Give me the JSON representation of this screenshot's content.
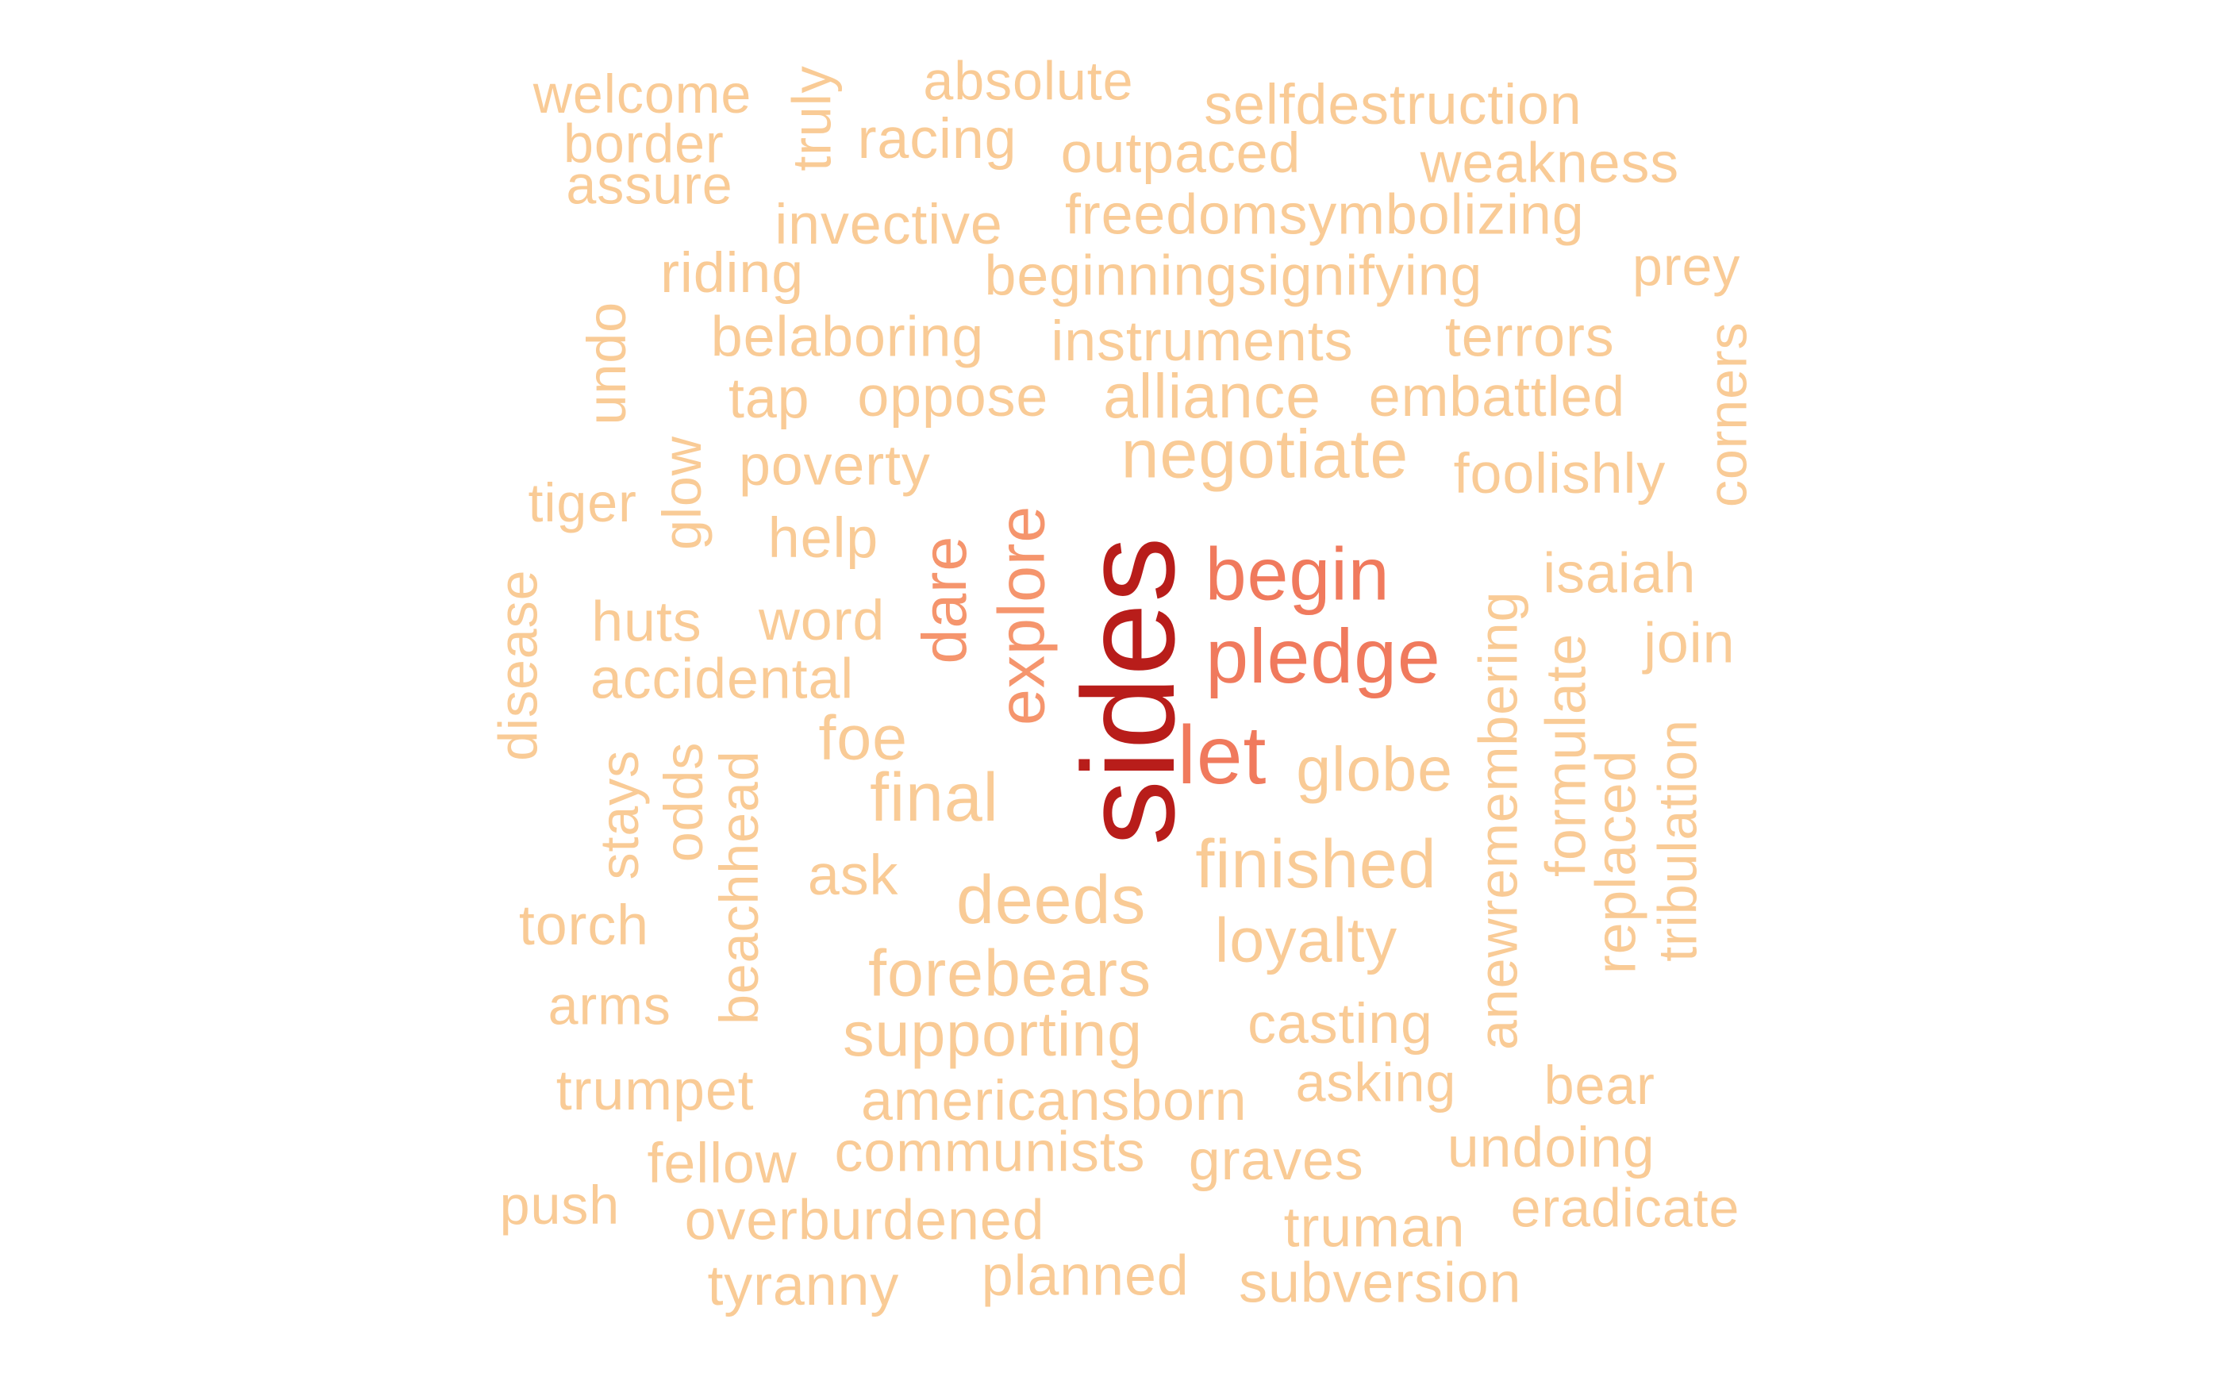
{
  "colors": {
    "background": "#ffffff",
    "level_0": "#f9cb96",
    "level_1": "#f5956d",
    "level_2": "#f07a5d",
    "level_3": "#b81d1a"
  },
  "words": [
    {
      "text": "sides",
      "level": 3
    },
    {
      "text": "begin",
      "level": 2
    },
    {
      "text": "pledge",
      "level": 2
    },
    {
      "text": "let",
      "level": 2
    },
    {
      "text": "explore",
      "level": 1
    },
    {
      "text": "dare",
      "level": 1
    },
    {
      "text": "welcome",
      "level": 0
    },
    {
      "text": "border",
      "level": 0
    },
    {
      "text": "assure",
      "level": 0
    },
    {
      "text": "truly",
      "level": 0
    },
    {
      "text": "absolute",
      "level": 0
    },
    {
      "text": "racing",
      "level": 0
    },
    {
      "text": "selfdestruction",
      "level": 0
    },
    {
      "text": "outpaced",
      "level": 0
    },
    {
      "text": "weakness",
      "level": 0
    },
    {
      "text": "invective",
      "level": 0
    },
    {
      "text": "freedomsymbolizing",
      "level": 0
    },
    {
      "text": "riding",
      "level": 0
    },
    {
      "text": "beginningsignifying",
      "level": 0
    },
    {
      "text": "prey",
      "level": 0
    },
    {
      "text": "undo",
      "level": 0
    },
    {
      "text": "belaboring",
      "level": 0
    },
    {
      "text": "instruments",
      "level": 0
    },
    {
      "text": "terrors",
      "level": 0
    },
    {
      "text": "corners",
      "level": 0
    },
    {
      "text": "tap",
      "level": 0
    },
    {
      "text": "oppose",
      "level": 0
    },
    {
      "text": "alliance",
      "level": 0
    },
    {
      "text": "embattled",
      "level": 0
    },
    {
      "text": "glow",
      "level": 0
    },
    {
      "text": "poverty",
      "level": 0
    },
    {
      "text": "negotiate",
      "level": 0
    },
    {
      "text": "foolishly",
      "level": 0
    },
    {
      "text": "tiger",
      "level": 0
    },
    {
      "text": "help",
      "level": 0
    },
    {
      "text": "isaiah",
      "level": 0
    },
    {
      "text": "disease",
      "level": 0
    },
    {
      "text": "huts",
      "level": 0
    },
    {
      "text": "word",
      "level": 0
    },
    {
      "text": "join",
      "level": 0
    },
    {
      "text": "accidental",
      "level": 0
    },
    {
      "text": "anewremembering",
      "level": 0
    },
    {
      "text": "formulate",
      "level": 0
    },
    {
      "text": "foe",
      "level": 0
    },
    {
      "text": "globe",
      "level": 0
    },
    {
      "text": "stays",
      "level": 0
    },
    {
      "text": "odds",
      "level": 0
    },
    {
      "text": "beachhead",
      "level": 0
    },
    {
      "text": "final",
      "level": 0
    },
    {
      "text": "replaced",
      "level": 0
    },
    {
      "text": "tribulation",
      "level": 0
    },
    {
      "text": "ask",
      "level": 0
    },
    {
      "text": "finished",
      "level": 0
    },
    {
      "text": "deeds",
      "level": 0
    },
    {
      "text": "torch",
      "level": 0
    },
    {
      "text": "loyalty",
      "level": 0
    },
    {
      "text": "forebears",
      "level": 0
    },
    {
      "text": "arms",
      "level": 0
    },
    {
      "text": "supporting",
      "level": 0
    },
    {
      "text": "casting",
      "level": 0
    },
    {
      "text": "trumpet",
      "level": 0
    },
    {
      "text": "asking",
      "level": 0
    },
    {
      "text": "bear",
      "level": 0
    },
    {
      "text": "americansborn",
      "level": 0
    },
    {
      "text": "undoing",
      "level": 0
    },
    {
      "text": "fellow",
      "level": 0
    },
    {
      "text": "communists",
      "level": 0
    },
    {
      "text": "graves",
      "level": 0
    },
    {
      "text": "push",
      "level": 0
    },
    {
      "text": "eradicate",
      "level": 0
    },
    {
      "text": "overburdened",
      "level": 0
    },
    {
      "text": "truman",
      "level": 0
    },
    {
      "text": "tyranny",
      "level": 0
    },
    {
      "text": "planned",
      "level": 0
    },
    {
      "text": "subversion",
      "level": 0
    }
  ]
}
